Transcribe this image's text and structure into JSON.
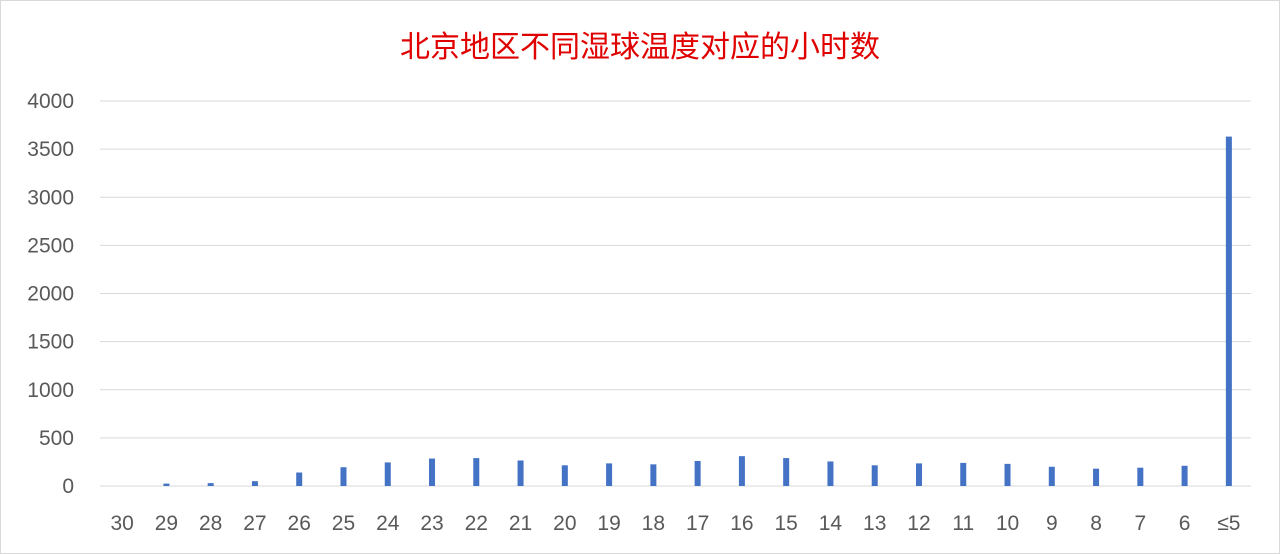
{
  "chart_data": {
    "type": "bar",
    "title": "北京地区不同湿球温度对应的小时数",
    "categories": [
      "30",
      "29",
      "28",
      "27",
      "26",
      "25",
      "24",
      "23",
      "22",
      "21",
      "20",
      "19",
      "18",
      "17",
      "16",
      "15",
      "14",
      "13",
      "12",
      "11",
      "10",
      "9",
      "8",
      "7",
      "6",
      "≤5"
    ],
    "series": [
      {
        "values": [
          0,
          25,
          30,
          50,
          140,
          195,
          245,
          285,
          290,
          265,
          215,
          235,
          225,
          260,
          310,
          290,
          255,
          215,
          235,
          240,
          230,
          200,
          180,
          190,
          210,
          3630
        ]
      }
    ],
    "ylim": [
      0,
      4000
    ],
    "yticks": [
      0,
      500,
      1000,
      1500,
      2000,
      2500,
      3000,
      3500,
      4000
    ],
    "grid": true,
    "legend": "none",
    "colors": {
      "bar": "#4472c4",
      "title": "#e00000",
      "grid": "#d9d9d9",
      "axis": "#595959"
    }
  }
}
